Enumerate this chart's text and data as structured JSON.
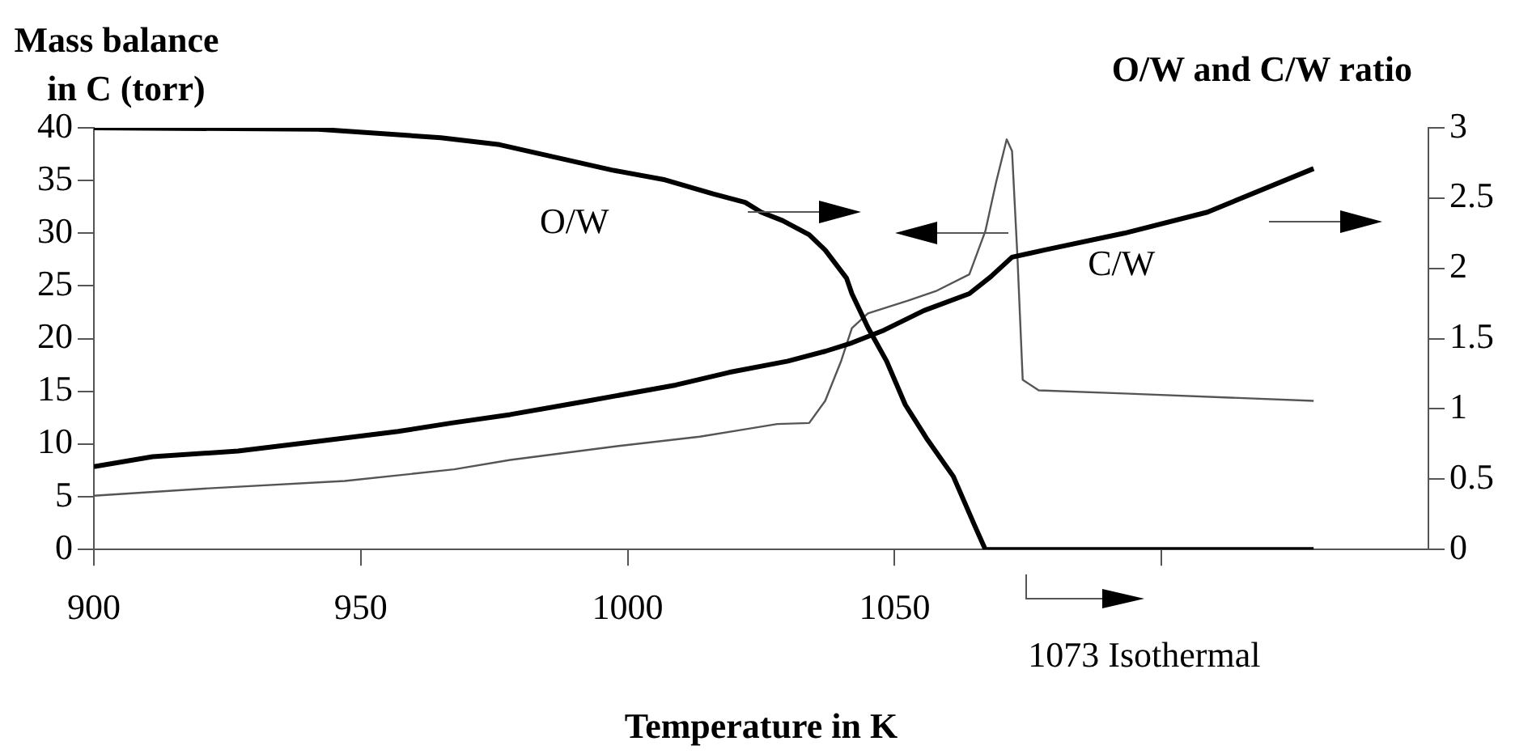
{
  "chart_data": {
    "type": "line",
    "xlabel": "Temperature in K",
    "ylabel": "Mass balance in C (torr)",
    "y2label": "O/W and C/W ratio",
    "xlim": [
      900,
      1150
    ],
    "xticks": [
      900,
      950,
      1000,
      1050,
      {
        "value": 1100,
        "label": null
      }
    ],
    "ylim": [
      0,
      40
    ],
    "yticks": [
      0,
      5,
      10,
      15,
      20,
      25,
      30,
      35,
      40
    ],
    "y2lim": [
      0,
      3
    ],
    "y2ticks": [
      0,
      0.5,
      1,
      1.5,
      2,
      2.5,
      3
    ],
    "grid": false,
    "legend": false,
    "marker": "none",
    "line_style": "solid",
    "annotations": [
      "1073 Isothermal"
    ],
    "series": [
      {
        "name": "O/W",
        "color": "#000000",
        "axis": "y2",
        "x": [
          900,
          942,
          965,
          976,
          997,
          1007,
          1016,
          1022,
          1025,
          1029,
          1034,
          1037,
          1041,
          1042,
          1045,
          1048.5,
          1052,
          1056,
          1061,
          1065,
          1067,
          1128.5
        ],
        "values": [
          3.0,
          2.99,
          2.93,
          2.88,
          2.7,
          2.63,
          2.53,
          2.47,
          2.4,
          2.34,
          2.24,
          2.13,
          1.93,
          1.82,
          1.58,
          1.34,
          1.03,
          0.79,
          0.52,
          0.17,
          0,
          0
        ]
      },
      {
        "name": "C/W",
        "color": "#000000",
        "axis": "y2",
        "x": [
          900,
          911,
          927,
          942,
          957,
          967,
          978,
          993,
          1009,
          1019,
          1030,
          1037,
          1042,
          1048,
          1055.5,
          1064,
          1068,
          1072,
          1078,
          1093,
          1108.6,
          1128.5
        ],
        "values": [
          0.59,
          0.66,
          0.7,
          0.77,
          0.84,
          0.9,
          0.96,
          1.06,
          1.17,
          1.26,
          1.34,
          1.41,
          1.47,
          1.56,
          1.7,
          1.82,
          1.94,
          2.08,
          2.13,
          2.25,
          2.4,
          2.71
        ]
      },
      {
        "color": "#555555",
        "axis": "y",
        "x": [
          900,
          921.5,
          947,
          967.5,
          978,
          998,
          1013.5,
          1022,
          1028,
          1034,
          1037,
          1040,
          1042,
          1045,
          1052.5,
          1057.7,
          1064,
          1067,
          1069,
          1071,
          1072,
          1073,
          1074,
          1077,
          1093,
          1128.5
        ],
        "values": [
          5.1,
          5.8,
          6.5,
          7.6,
          8.5,
          9.8,
          10.7,
          11.4,
          11.9,
          12,
          14.1,
          17.9,
          21,
          22.4,
          23.6,
          24.5,
          26.1,
          30.2,
          34.8,
          38.9,
          37.8,
          27.9,
          16.1,
          15.1,
          14.8,
          14.1
        ]
      }
    ]
  }
}
